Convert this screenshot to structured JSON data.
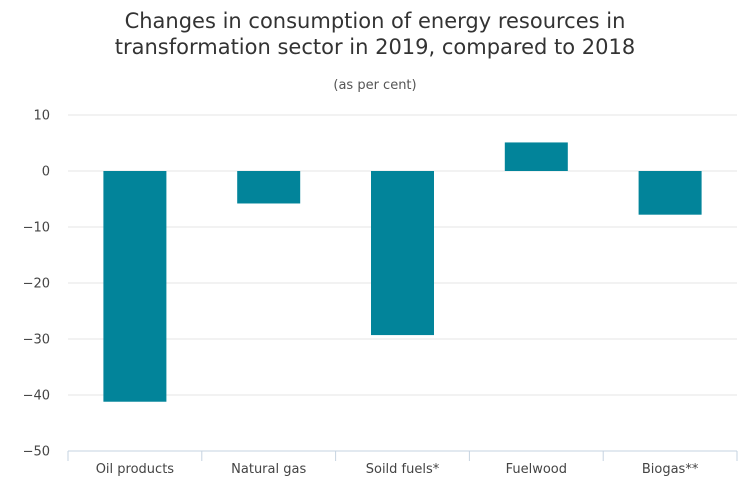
{
  "chart_data": {
    "type": "bar",
    "title_lines": [
      "Changes in consumption of energy resources in",
      "transformation sector in 2019, compared to 2018"
    ],
    "subtitle": "(as per cent)",
    "categories": [
      "Oil products",
      "Natural gas",
      "Soild fuels*",
      "Fuelwood",
      "Biogas**"
    ],
    "values": [
      -41.2,
      -5.8,
      -29.3,
      5.1,
      -7.8
    ],
    "ylim": [
      -50,
      10
    ],
    "yticks": [
      10,
      0,
      -10,
      -20,
      -30,
      -40,
      -50
    ],
    "ytick_labels": [
      "10",
      "0",
      "−10",
      "−20",
      "−30",
      "−40",
      "−50"
    ],
    "grid": true,
    "bar_color": "#02849a",
    "grid_color": "#e6e6e6",
    "axis_color": "#c6d3e0"
  }
}
